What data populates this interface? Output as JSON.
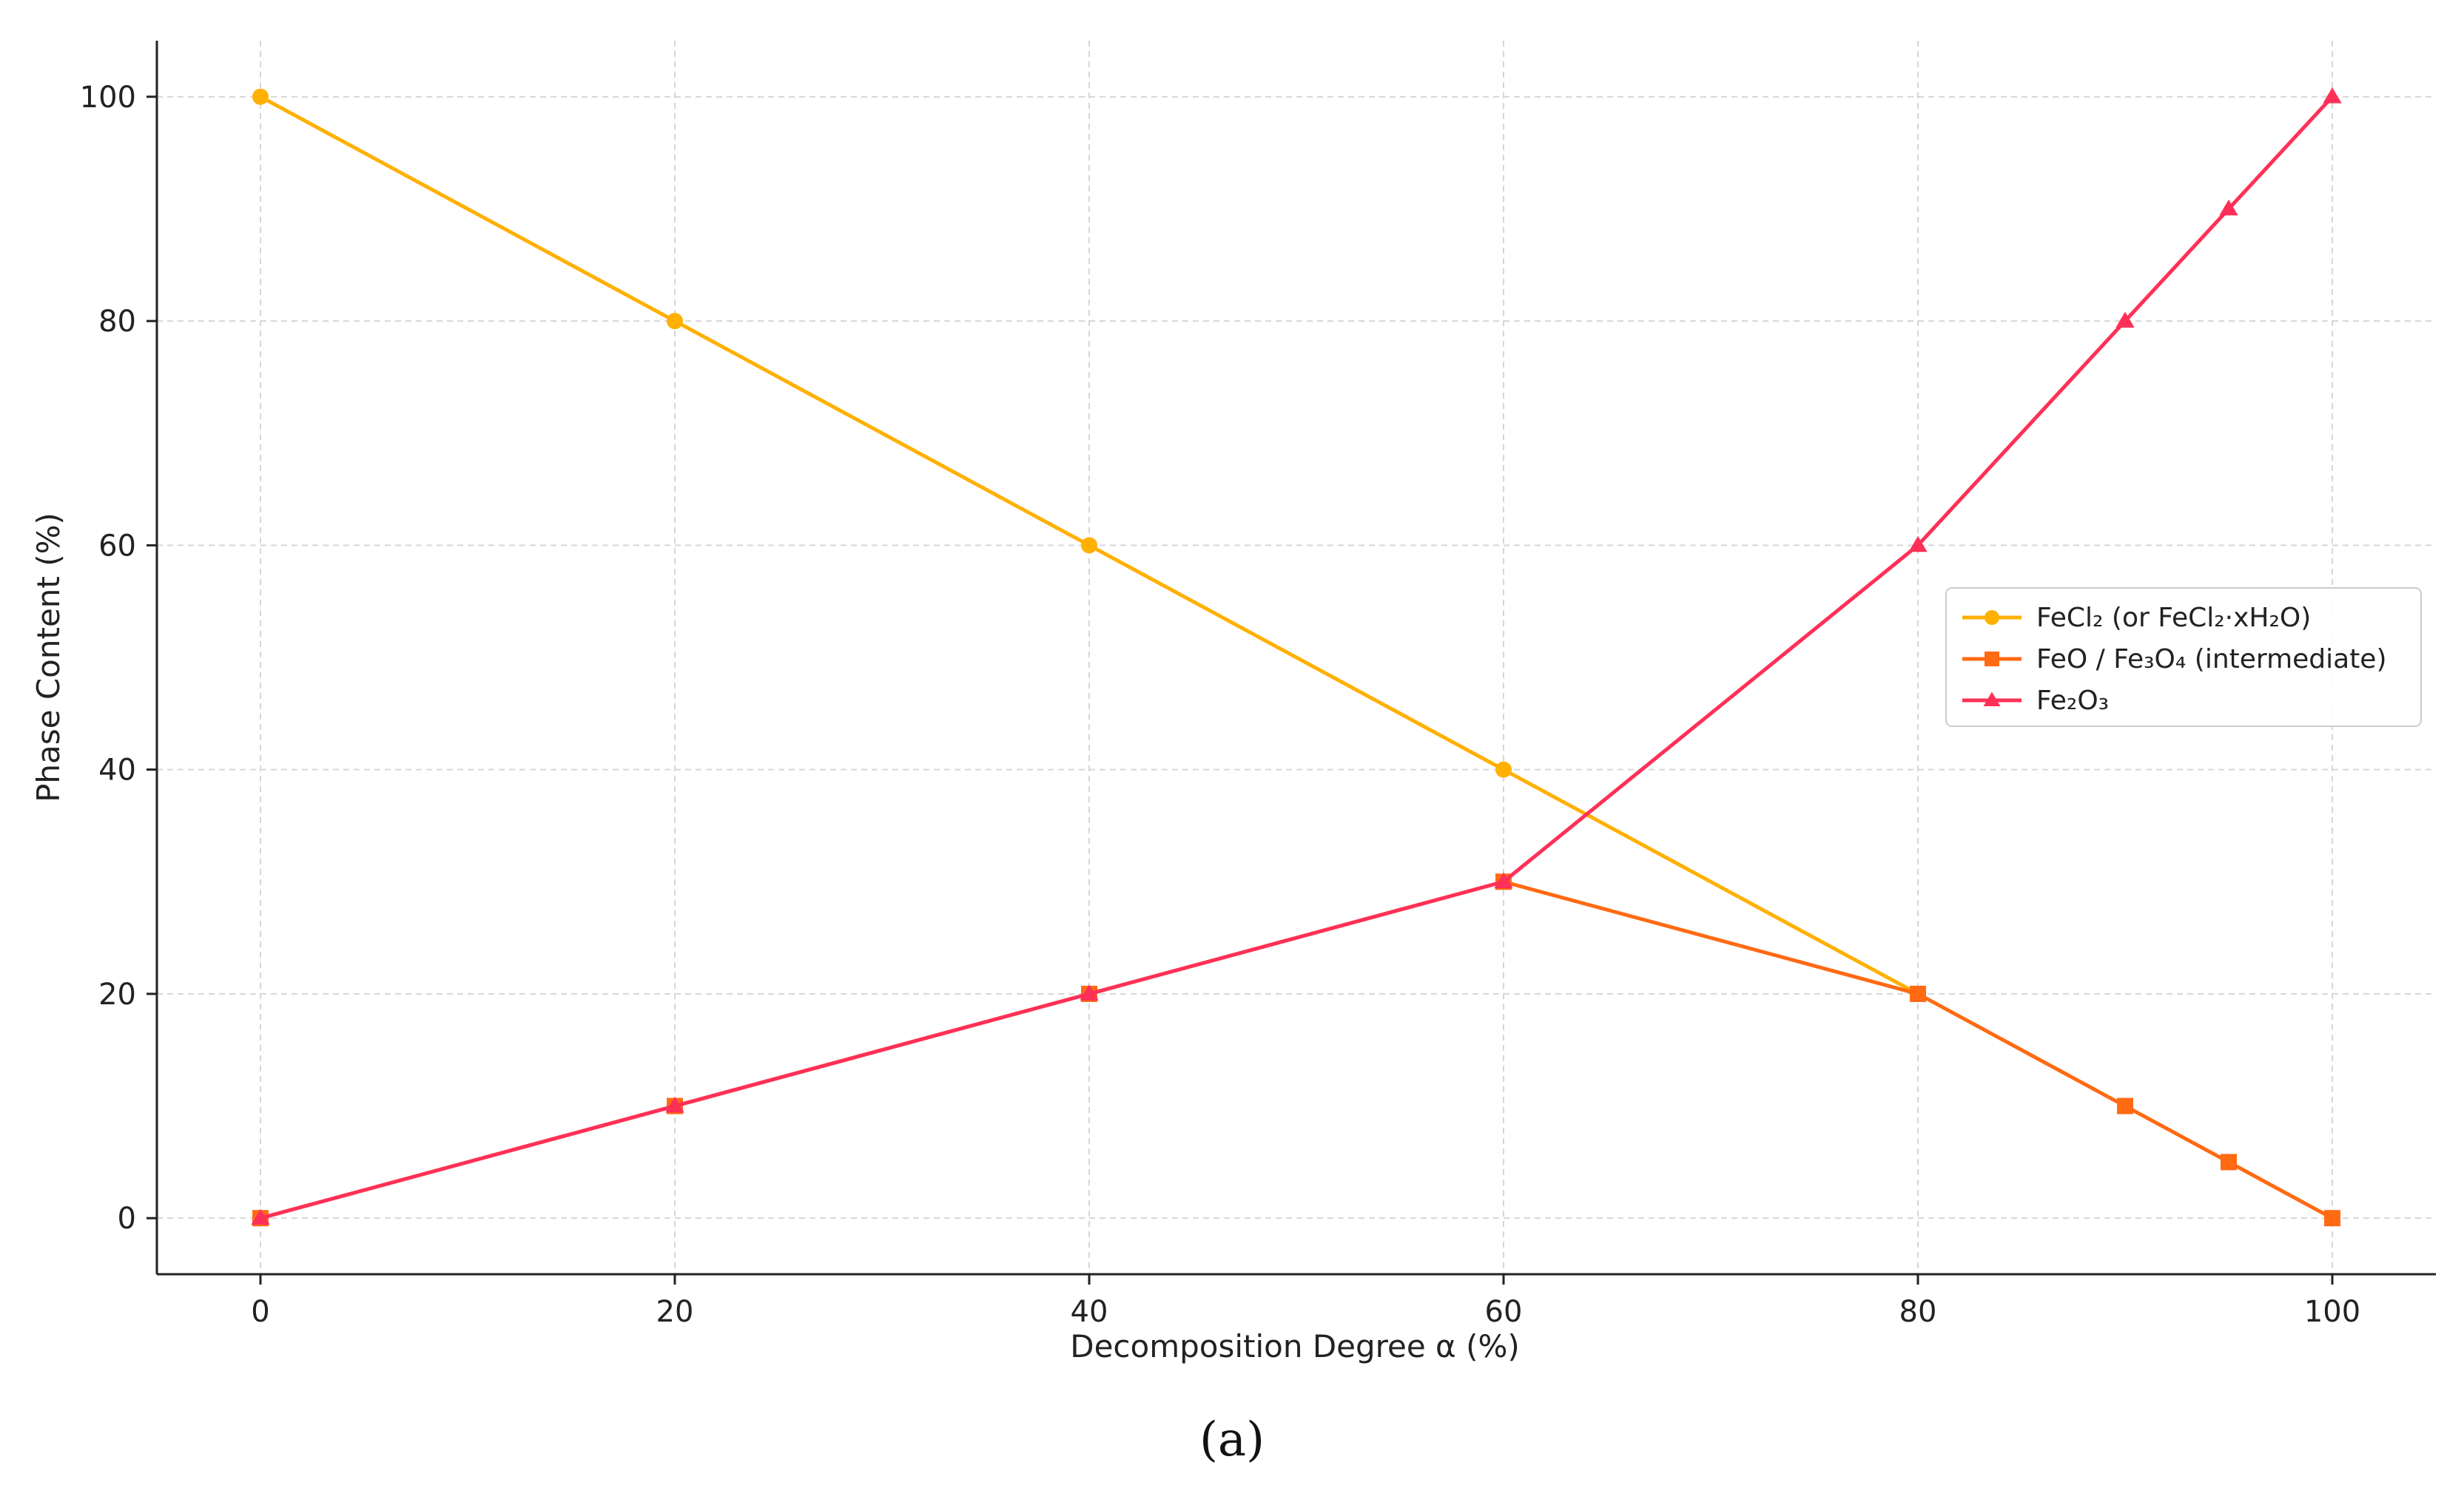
{
  "chart_data": {
    "type": "line",
    "xlabel": "Decomposition Degree α (%)",
    "ylabel": "Phase Content (%)",
    "xlim": [
      -5,
      105
    ],
    "ylim": [
      -5,
      105
    ],
    "xticks": [
      0,
      20,
      40,
      60,
      80,
      100
    ],
    "yticks": [
      0,
      20,
      40,
      60,
      80,
      100
    ],
    "grid": true,
    "legend": "center-right",
    "panel_label": "(a)",
    "series": [
      {
        "name": "FeCl₂ (or FeCl₂·xH₂O)",
        "color": "#FFB000",
        "marker": "circle",
        "x": [
          0,
          20,
          40,
          60,
          80
        ],
        "y": [
          100,
          80,
          60,
          40,
          20
        ]
      },
      {
        "name": "FeO / Fe₃O₄ (intermediate)",
        "color": "#FF6A13",
        "marker": "square",
        "x": [
          0,
          20,
          40,
          60,
          80,
          90,
          95,
          100
        ],
        "y": [
          0,
          10,
          20,
          30,
          20,
          10,
          5,
          0
        ]
      },
      {
        "name": "Fe₂O₃",
        "color": "#FF3057",
        "marker": "triangle",
        "x": [
          0,
          20,
          40,
          60,
          80,
          90,
          95,
          100
        ],
        "y": [
          0,
          10,
          20,
          30,
          60,
          80,
          90,
          100
        ]
      }
    ]
  }
}
